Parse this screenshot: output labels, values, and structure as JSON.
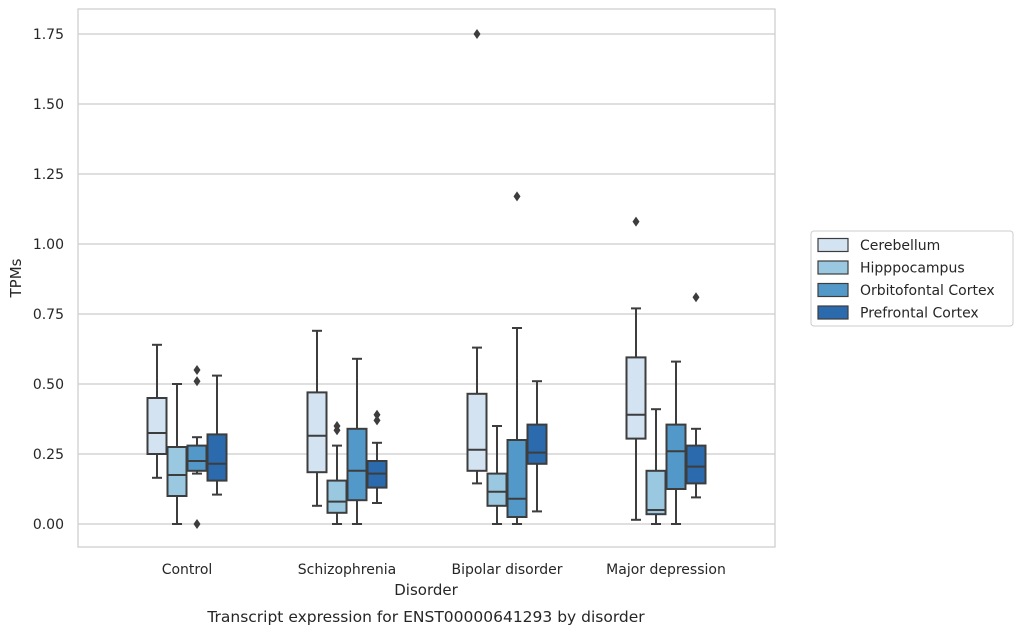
{
  "chart_data": {
    "type": "box",
    "title": "Transcript expression for ENST00000641293 by disorder",
    "xlabel": "Disorder",
    "ylabel": "TPMs",
    "ylim": [
      -0.08,
      1.84
    ],
    "yticks": [
      0.0,
      0.25,
      0.5,
      0.75,
      1.0,
      1.25,
      1.5,
      1.75
    ],
    "ytick_labels": [
      "0.00",
      "0.25",
      "0.50",
      "0.75",
      "1.00",
      "1.25",
      "1.50",
      "1.75"
    ],
    "grid": true,
    "legend_position": "right",
    "categories": [
      "Control",
      "Schizophrenia",
      "Bipolar disorder",
      "Major depression"
    ],
    "series": [
      {
        "name": "Cerebellum",
        "color": "#d3e3f2",
        "boxes": [
          {
            "whisker_low": 0.165,
            "q1": 0.25,
            "median": 0.325,
            "q3": 0.45,
            "whisker_high": 0.64,
            "outliers": []
          },
          {
            "whisker_low": 0.065,
            "q1": 0.185,
            "median": 0.315,
            "q3": 0.47,
            "whisker_high": 0.69,
            "outliers": []
          },
          {
            "whisker_low": 0.145,
            "q1": 0.19,
            "median": 0.265,
            "q3": 0.465,
            "whisker_high": 0.63,
            "outliers": [
              1.75
            ]
          },
          {
            "whisker_low": 0.015,
            "q1": 0.305,
            "median": 0.39,
            "q3": 0.595,
            "whisker_high": 0.77,
            "outliers": [
              1.08
            ]
          }
        ]
      },
      {
        "name": "Hipppocampus",
        "color": "#9ac8e0",
        "boxes": [
          {
            "whisker_low": 0.0,
            "q1": 0.1,
            "median": 0.175,
            "q3": 0.275,
            "whisker_high": 0.5,
            "outliers": []
          },
          {
            "whisker_low": 0.0,
            "q1": 0.04,
            "median": 0.08,
            "q3": 0.155,
            "whisker_high": 0.28,
            "outliers": [
              0.335,
              0.35
            ]
          },
          {
            "whisker_low": 0.0,
            "q1": 0.065,
            "median": 0.115,
            "q3": 0.18,
            "whisker_high": 0.35,
            "outliers": []
          },
          {
            "whisker_low": 0.0,
            "q1": 0.035,
            "median": 0.05,
            "q3": 0.19,
            "whisker_high": 0.41,
            "outliers": []
          }
        ]
      },
      {
        "name": "Orbitofontal Cortex",
        "color": "#5299c9",
        "boxes": [
          {
            "whisker_low": 0.18,
            "q1": 0.19,
            "median": 0.225,
            "q3": 0.28,
            "whisker_high": 0.31,
            "outliers": [
              0.0,
              0.51,
              0.55
            ]
          },
          {
            "whisker_low": 0.0,
            "q1": 0.085,
            "median": 0.19,
            "q3": 0.34,
            "whisker_high": 0.59,
            "outliers": []
          },
          {
            "whisker_low": 0.0,
            "q1": 0.025,
            "median": 0.09,
            "q3": 0.3,
            "whisker_high": 0.7,
            "outliers": [
              1.17
            ]
          },
          {
            "whisker_low": 0.0,
            "q1": 0.125,
            "median": 0.26,
            "q3": 0.355,
            "whisker_high": 0.58,
            "outliers": []
          }
        ]
      },
      {
        "name": "Prefrontal Cortex",
        "color": "#2a6aad",
        "boxes": [
          {
            "whisker_low": 0.105,
            "q1": 0.155,
            "median": 0.215,
            "q3": 0.32,
            "whisker_high": 0.53,
            "outliers": []
          },
          {
            "whisker_low": 0.075,
            "q1": 0.13,
            "median": 0.18,
            "q3": 0.225,
            "whisker_high": 0.29,
            "outliers": [
              0.37,
              0.39
            ]
          },
          {
            "whisker_low": 0.045,
            "q1": 0.215,
            "median": 0.255,
            "q3": 0.355,
            "whisker_high": 0.51,
            "outliers": []
          },
          {
            "whisker_low": 0.095,
            "q1": 0.145,
            "median": 0.205,
            "q3": 0.28,
            "whisker_high": 0.34,
            "outliers": [
              0.81
            ]
          }
        ]
      }
    ]
  }
}
